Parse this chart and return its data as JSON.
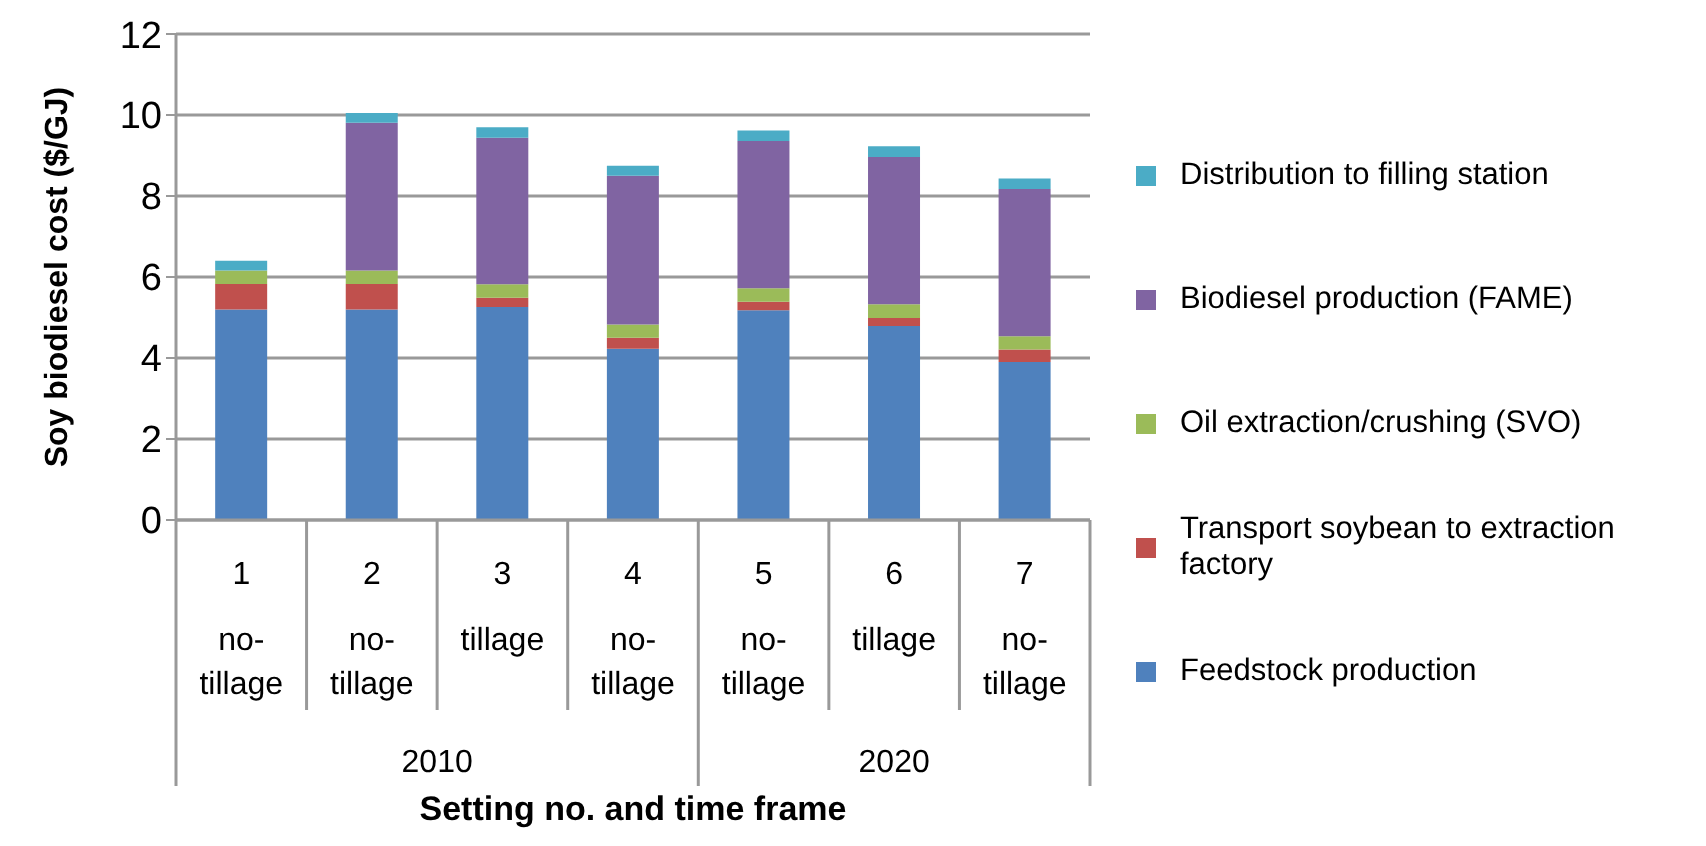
{
  "chart_data": {
    "type": "bar",
    "stacked": true,
    "xlabel": "Setting no. and time frame",
    "ylabel": "Soy biodiesel cost ($/GJ)",
    "categories": [
      "1 no-tillage",
      "2 no-tillage",
      "3 tillage",
      "4 no-tillage",
      "5 no-tillage",
      "6 tillage",
      "7 no-tillage"
    ],
    "annotations": [
      "2010",
      "2020"
    ],
    "series": [
      {
        "name": "Feedstock production",
        "color": "#4f81bd",
        "values": [
          5.2,
          5.2,
          5.26,
          4.23,
          5.18,
          4.79,
          3.9
        ]
      },
      {
        "name": "Transport soybean to extraction factory",
        "color": "#c0504d",
        "values": [
          0.63,
          0.63,
          0.23,
          0.27,
          0.21,
          0.2,
          0.31
        ]
      },
      {
        "name": "Oil extraction/crushing (SVO)",
        "color": "#9bbb59",
        "values": [
          0.33,
          0.33,
          0.33,
          0.33,
          0.33,
          0.34,
          0.33
        ]
      },
      {
        "name": "Biodiesel production (FAME)",
        "color": "#8064a2",
        "values": [
          0,
          3.65,
          3.62,
          3.67,
          3.64,
          3.63,
          3.63
        ]
      },
      {
        "name": "Distribution to filling station",
        "color": "#4bacc6",
        "values": [
          0.24,
          0.24,
          0.26,
          0.25,
          0.26,
          0.27,
          0.26
        ]
      }
    ],
    "ylim": [
      0,
      12
    ],
    "yticks": [
      0,
      2,
      4,
      6,
      8,
      10,
      12
    ],
    "grid": "y",
    "legend": "right"
  }
}
